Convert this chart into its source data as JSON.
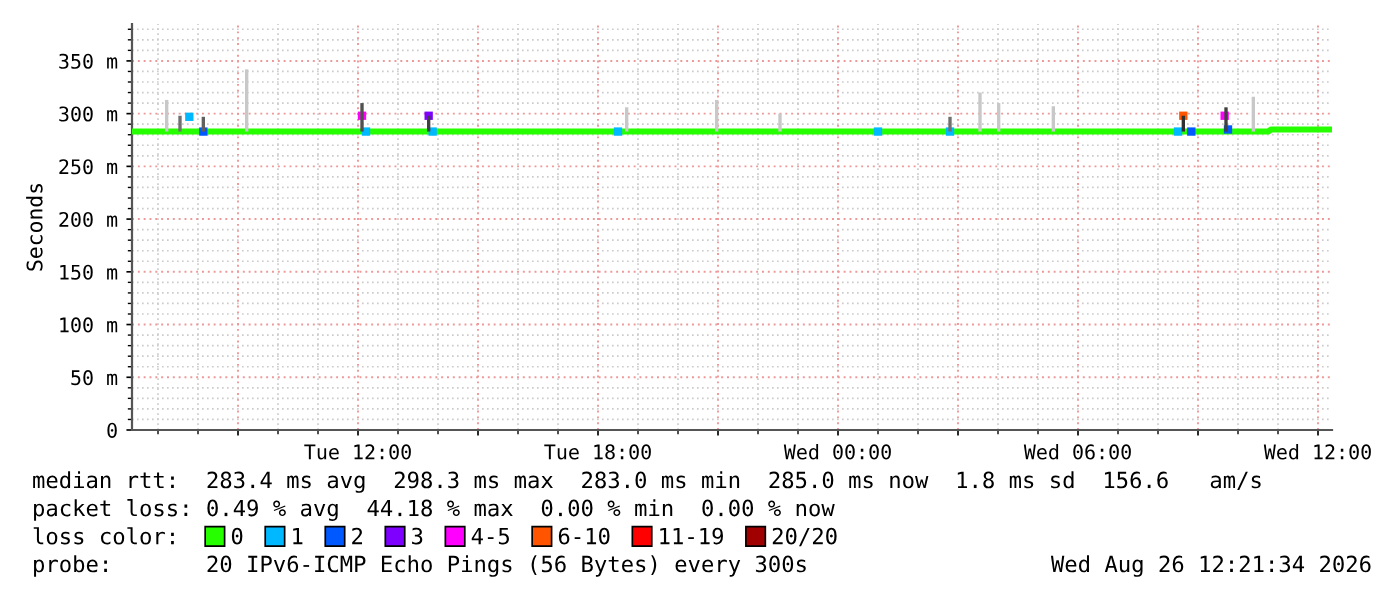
{
  "chart_data": {
    "type": "line",
    "ylabel": "Seconds",
    "xlim": [
      "2026-08-25T06:21",
      "2026-08-26T12:21"
    ],
    "xticks": [
      {
        "value": "2026-08-25T09:00",
        "label": null
      },
      {
        "value": "2026-08-25T12:00",
        "label": "Tue 12:00"
      },
      {
        "value": "2026-08-25T15:00",
        "label": null
      },
      {
        "value": "2026-08-25T18:00",
        "label": "Tue 18:00"
      },
      {
        "value": "2026-08-25T21:00",
        "label": null
      },
      {
        "value": "2026-08-26T00:00",
        "label": "Wed 00:00"
      },
      {
        "value": "2026-08-26T03:00",
        "label": null
      },
      {
        "value": "2026-08-26T06:00",
        "label": "Wed 06:00"
      },
      {
        "value": "2026-08-26T09:00",
        "label": null
      },
      {
        "value": "2026-08-26T12:00",
        "label": "Wed 12:00"
      }
    ],
    "ylim": [
      0,
      385
    ],
    "yticks": [
      0,
      {
        "value": 50,
        "label": "50 m"
      },
      {
        "value": 100,
        "label": "100 m"
      },
      {
        "value": 150,
        "label": "150 m"
      },
      {
        "value": 200,
        "label": "200 m"
      },
      {
        "value": 250,
        "label": "250 m"
      },
      {
        "value": 300,
        "label": "300 m"
      },
      {
        "value": 350,
        "label": "350 m"
      }
    ],
    "grid": true,
    "legend": "bottom",
    "legend_title": "loss color:",
    "series": [
      {
        "type": "bar",
        "color": "#c8c8c8",
        "x": [
          "2026-08-25T07:13",
          "2026-08-25T07:33",
          "2026-08-25T08:08",
          "2026-08-25T09:13",
          "2026-08-25T12:06",
          "2026-08-25T13:46",
          "2026-08-25T18:43",
          "2026-08-25T20:58",
          "2026-08-25T22:33",
          "2026-08-26T02:48",
          "2026-08-26T03:33",
          "2026-08-26T04:01",
          "2026-08-26T05:23",
          "2026-08-26T08:38",
          "2026-08-26T09:42",
          "2026-08-26T10:23"
        ],
        "base": [
          283,
          283,
          283,
          283,
          283,
          283,
          283,
          283,
          283,
          283,
          283,
          283,
          283,
          283,
          283,
          283
        ],
        "values": [
          30,
          15,
          14,
          59,
          27,
          15,
          23,
          30,
          17,
          14,
          37,
          27,
          24,
          15,
          23,
          33
        ],
        "colors": [
          "#c8c8c8",
          "#707070",
          "#606060",
          "#c8c8c8",
          "#505050",
          "#404040",
          "#c8c8c8",
          "#c8c8c8",
          "#c8c8c8",
          "#707070",
          "#c8c8c8",
          "#c8c8c8",
          "#c8c8c8",
          "#303030",
          "#404040",
          "#c8c8c8"
        ]
      },
      {
        "name": "0",
        "color": "#26ff00",
        "x": [
          "2026-08-25T06:21",
          "2026-08-25T12:00",
          "2026-08-25T18:00",
          "2026-08-26T00:00",
          "2026-08-26T06:00",
          "2026-08-26T10:45",
          "2026-08-26T10:50",
          "2026-08-26T12:21"
        ],
        "values": [
          283,
          283,
          283,
          283,
          283,
          283,
          285,
          285
        ]
      },
      {
        "type": "scatter",
        "marker": "square",
        "name": "1",
        "color": "#00b8ff",
        "x": [
          "2026-08-25T07:47",
          "2026-08-25T12:12",
          "2026-08-25T13:52",
          "2026-08-25T18:30",
          "2026-08-26T01:00",
          "2026-08-26T02:48",
          "2026-08-26T08:30"
        ],
        "values": [
          297,
          283,
          283,
          283,
          283,
          283,
          283
        ]
      },
      {
        "type": "scatter",
        "marker": "square",
        "name": "2",
        "color": "#0059ff",
        "x": [
          "2026-08-25T08:08",
          "2026-08-26T08:50",
          "2026-08-26T09:45"
        ],
        "values": [
          283,
          283,
          285
        ]
      },
      {
        "type": "scatter",
        "marker": "square",
        "name": "3",
        "color": "#7e00ff",
        "x": [
          "2026-08-25T13:46"
        ],
        "values": [
          298
        ]
      },
      {
        "type": "scatter",
        "marker": "square",
        "name": "4-5",
        "color": "#ff00ff",
        "x": [
          "2026-08-25T12:06",
          "2026-08-26T09:40"
        ],
        "values": [
          298,
          298
        ]
      },
      {
        "type": "scatter",
        "marker": "square",
        "name": "6-10",
        "color": "#ff5500",
        "x": [
          "2026-08-26T08:38"
        ],
        "values": [
          298
        ]
      },
      {
        "type": "scatter",
        "name": "11-19",
        "color": "#ff0000"
      },
      {
        "type": "scatter",
        "name": "20/20",
        "color": "#a10000"
      }
    ],
    "annotations": [
      "median rtt:  283.4 ms avg  298.3 ms max  283.0 ms min  285.0 ms now  1.8 ms sd  156.6   am/s",
      "packet loss: 0.49 % avg  44.18 % max  0.00 % min  0.00 % now",
      "probe:       20 IPv6-ICMP Echo Pings (56 Bytes) every 300s",
      "Wed Aug 26 12:21:34 2026"
    ]
  }
}
